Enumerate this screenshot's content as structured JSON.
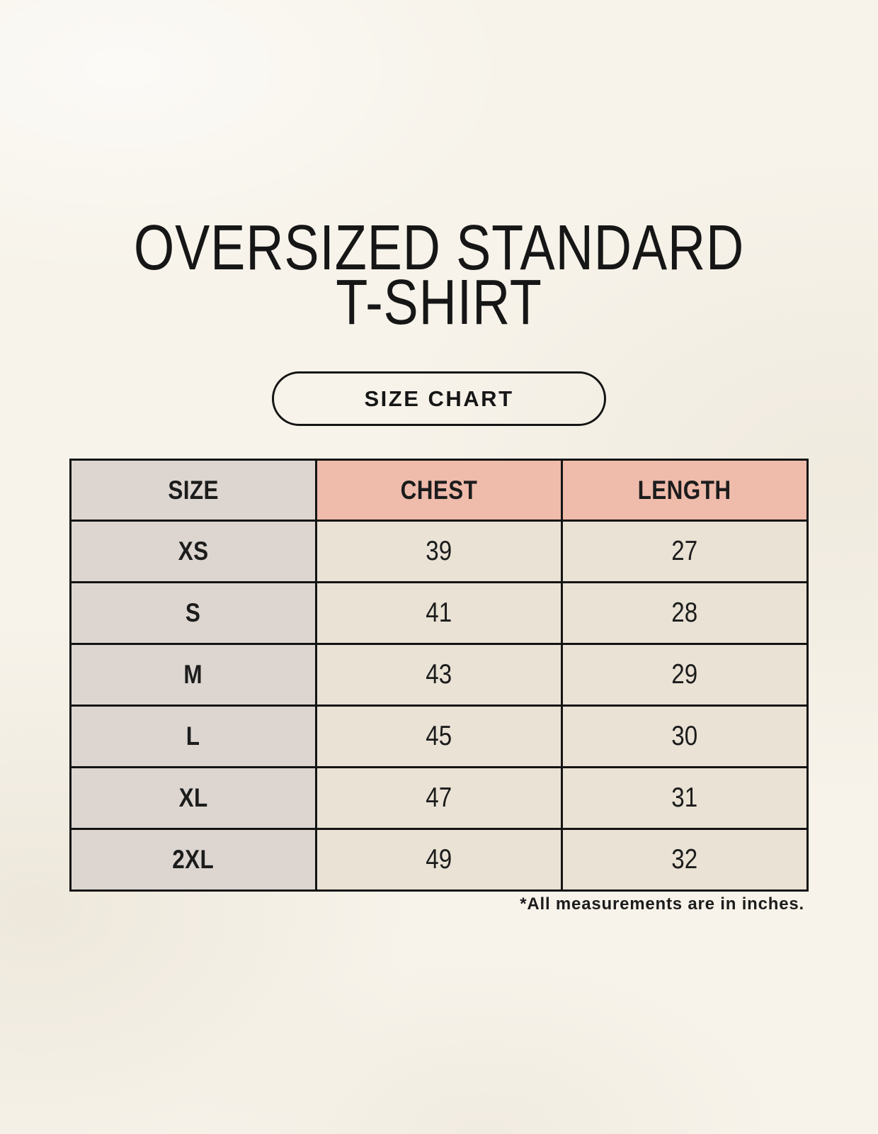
{
  "title": {
    "line1": "OVERSIZED STANDARD",
    "line2": "T-SHIRT"
  },
  "size_chart_button": {
    "label": "SIZE CHART"
  },
  "colors": {
    "page_background": "#f7f3ea",
    "size_column_bg": "#ddd6d0",
    "measurement_header_bg": "#efbbab",
    "value_cell_bg": "#e9e2d5",
    "table_border": "#141414",
    "text": "#1c1c1c"
  },
  "chart_data": {
    "type": "table",
    "title": "OVERSIZED STANDARD T-SHIRT",
    "columns": [
      "SIZE",
      "CHEST",
      "LENGTH"
    ],
    "rows": [
      [
        "XS",
        "39",
        "27"
      ],
      [
        "S",
        "41",
        "28"
      ],
      [
        "M",
        "43",
        "29"
      ],
      [
        "L",
        "45",
        "30"
      ],
      [
        "XL",
        "47",
        "31"
      ],
      [
        "2XL",
        "49",
        "32"
      ]
    ],
    "note": "*All measurements are in inches."
  }
}
